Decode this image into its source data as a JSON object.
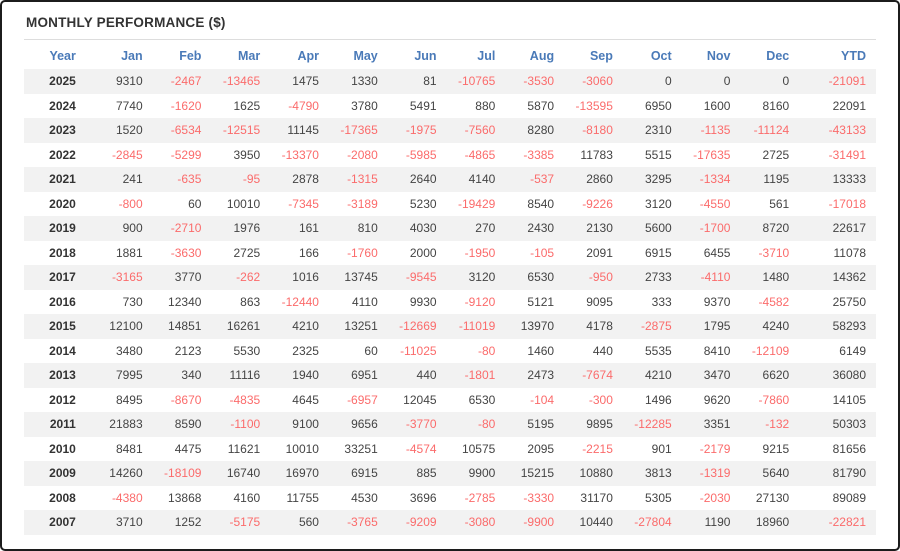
{
  "title": "MONTHLY PERFORMANCE ($)",
  "colors": {
    "header_text": "#4a7ab8",
    "negative_value": "#fb6b6b",
    "positive_value": "#444444",
    "year_text": "#333333",
    "row_stripe": "#f2f2f2",
    "divider": "#dddddd",
    "frame_border": "#1c1c1c"
  },
  "chart_data": {
    "type": "table",
    "title": "MONTHLY PERFORMANCE ($)",
    "columns": [
      "Year",
      "Jan",
      "Feb",
      "Mar",
      "Apr",
      "May",
      "Jun",
      "Jul",
      "Aug",
      "Sep",
      "Oct",
      "Nov",
      "Dec",
      "YTD"
    ],
    "rows": [
      {
        "year": "2025",
        "values": [
          9310,
          -2467,
          -13465,
          1475,
          1330,
          81,
          -10765,
          -3530,
          -3060,
          0,
          0,
          0,
          -21091
        ]
      },
      {
        "year": "2024",
        "values": [
          7740,
          -1620,
          1625,
          -4790,
          3780,
          5491,
          880,
          5870,
          -13595,
          6950,
          1600,
          8160,
          22091
        ]
      },
      {
        "year": "2023",
        "values": [
          1520,
          -6534,
          -12515,
          11145,
          -17365,
          -1975,
          -7560,
          8280,
          -8180,
          2310,
          -1135,
          -11124,
          -43133
        ]
      },
      {
        "year": "2022",
        "values": [
          -2845,
          -5299,
          3950,
          -13370,
          -2080,
          -5985,
          -4865,
          -3385,
          11783,
          5515,
          -17635,
          2725,
          -31491
        ]
      },
      {
        "year": "2021",
        "values": [
          241,
          -635,
          -95,
          2878,
          -1315,
          2640,
          4140,
          -537,
          2860,
          3295,
          -1334,
          1195,
          13333
        ]
      },
      {
        "year": "2020",
        "values": [
          -800,
          60,
          10010,
          -7345,
          -3189,
          5230,
          -19429,
          8540,
          -9226,
          3120,
          -4550,
          561,
          -17018
        ]
      },
      {
        "year": "2019",
        "values": [
          900,
          -2710,
          1976,
          161,
          810,
          4030,
          270,
          2430,
          2130,
          5600,
          -1700,
          8720,
          22617
        ]
      },
      {
        "year": "2018",
        "values": [
          1881,
          -3630,
          2725,
          166,
          -1760,
          2000,
          -1950,
          -105,
          2091,
          6915,
          6455,
          -3710,
          11078
        ]
      },
      {
        "year": "2017",
        "values": [
          -3165,
          3770,
          -262,
          1016,
          13745,
          -9545,
          3120,
          6530,
          -950,
          2733,
          -4110,
          1480,
          14362
        ]
      },
      {
        "year": "2016",
        "values": [
          730,
          12340,
          863,
          -12440,
          4110,
          9930,
          -9120,
          5121,
          9095,
          333,
          9370,
          -4582,
          25750
        ]
      },
      {
        "year": "2015",
        "values": [
          12100,
          14851,
          16261,
          4210,
          13251,
          -12669,
          -11019,
          13970,
          4178,
          -2875,
          1795,
          4240,
          58293
        ]
      },
      {
        "year": "2014",
        "values": [
          3480,
          2123,
          5530,
          2325,
          60,
          -11025,
          -80,
          1460,
          440,
          5535,
          8410,
          -12109,
          6149
        ]
      },
      {
        "year": "2013",
        "values": [
          7995,
          340,
          11116,
          1940,
          6951,
          440,
          -1801,
          2473,
          -7674,
          4210,
          3470,
          6620,
          36080
        ]
      },
      {
        "year": "2012",
        "values": [
          8495,
          -8670,
          -4835,
          4645,
          -6957,
          12045,
          6530,
          -104,
          -300,
          1496,
          9620,
          -7860,
          14105
        ]
      },
      {
        "year": "2011",
        "values": [
          21883,
          8590,
          -1100,
          9100,
          9656,
          -3770,
          -80,
          5195,
          9895,
          -12285,
          3351,
          -132,
          50303
        ]
      },
      {
        "year": "2010",
        "values": [
          8481,
          4475,
          11621,
          10010,
          33251,
          -4574,
          10575,
          2095,
          -2215,
          901,
          -2179,
          9215,
          81656
        ]
      },
      {
        "year": "2009",
        "values": [
          14260,
          -18109,
          16740,
          16970,
          6915,
          885,
          9900,
          15215,
          10880,
          3813,
          -1319,
          5640,
          81790
        ]
      },
      {
        "year": "2008",
        "values": [
          -4380,
          13868,
          4160,
          11755,
          4530,
          3696,
          -2785,
          -3330,
          31170,
          5305,
          -2030,
          27130,
          89089
        ]
      },
      {
        "year": "2007",
        "values": [
          3710,
          1252,
          -5175,
          560,
          -3765,
          -9209,
          -3080,
          -9900,
          10440,
          -27804,
          1190,
          18960,
          -22821
        ]
      }
    ]
  }
}
